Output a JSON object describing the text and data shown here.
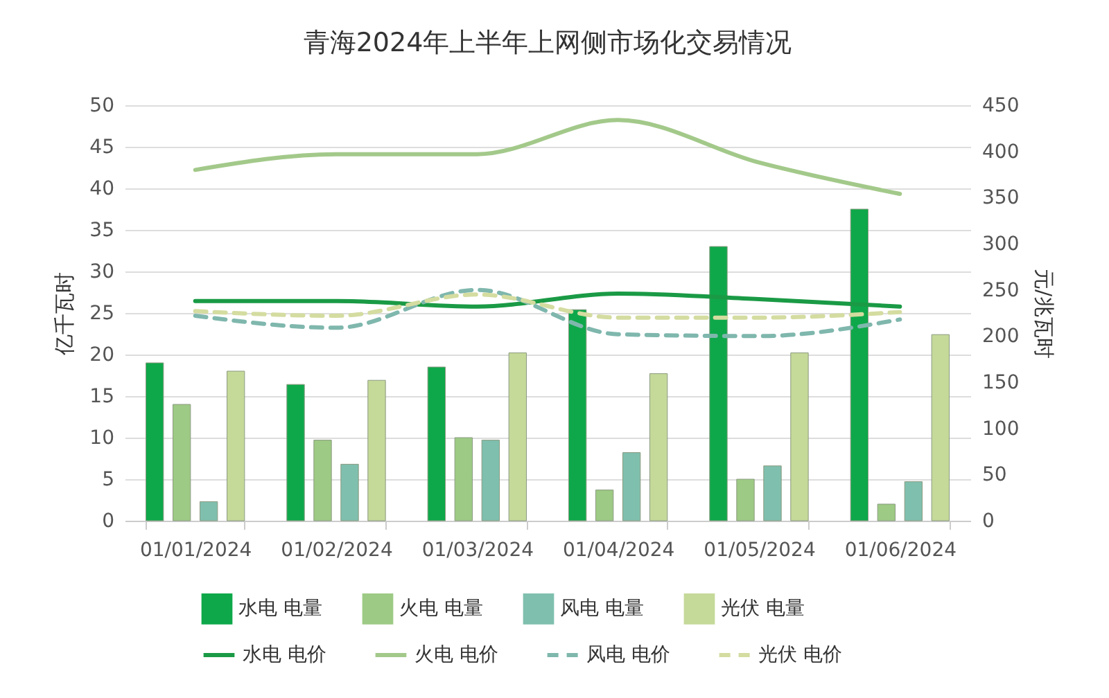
{
  "chart_data": {
    "type": "bar",
    "title": "青海2024年上半年上网侧市场化交易情况",
    "ylabel": "亿千瓦时",
    "y2label": "元/兆瓦时",
    "categories": [
      "01/01/2024",
      "01/02/2024",
      "01/03/2024",
      "01/04/2024",
      "01/05/2024",
      "01/06/2024"
    ],
    "series": [
      {
        "name": "水电 电量",
        "color": "#0ea84a",
        "values": [
          19.0,
          16.4,
          18.5,
          25.4,
          33.0,
          37.5
        ]
      },
      {
        "name": "火电 电量",
        "color": "#9dca84",
        "values": [
          14.0,
          9.7,
          10.0,
          3.7,
          5.0,
          2.0
        ]
      },
      {
        "name": "风电 电量",
        "color": "#7fbfae",
        "values": [
          2.3,
          6.8,
          9.7,
          8.2,
          6.6,
          4.7
        ]
      },
      {
        "name": "光伏 电量",
        "color": "#c5d999",
        "values": [
          18.0,
          16.9,
          20.2,
          17.7,
          20.2,
          22.4
        ]
      },
      {
        "name": "水电 电价",
        "type": "line",
        "axis": "y2",
        "line_style": "solid",
        "color": "#1a9a45",
        "values": [
          238,
          238,
          232,
          246,
          240,
          232
        ]
      },
      {
        "name": "火电 电价",
        "type": "line",
        "axis": "y2",
        "line_style": "solid",
        "color": "#a3c98a",
        "values": [
          380,
          397,
          397,
          434,
          388,
          354
        ]
      },
      {
        "name": "风电 电价",
        "type": "line",
        "axis": "y2",
        "line_style": "dashed",
        "color": "#7fb7ad",
        "values": [
          222,
          209,
          250,
          202,
          200,
          218
        ]
      },
      {
        "name": "光伏 电价",
        "type": "line",
        "axis": "y2",
        "line_style": "dashed",
        "color": "#d4dca0",
        "values": [
          227,
          222,
          245,
          220,
          220,
          226
        ]
      }
    ],
    "ylim": [
      0,
      50
    ],
    "yticks": [
      0,
      5,
      10,
      15,
      20,
      25,
      30,
      35,
      40,
      45,
      50
    ],
    "y2lim": [
      0,
      450
    ],
    "y2ticks": [
      0,
      50,
      100,
      150,
      200,
      250,
      300,
      350,
      400,
      450
    ],
    "grid": "y",
    "legend": "bottom"
  }
}
